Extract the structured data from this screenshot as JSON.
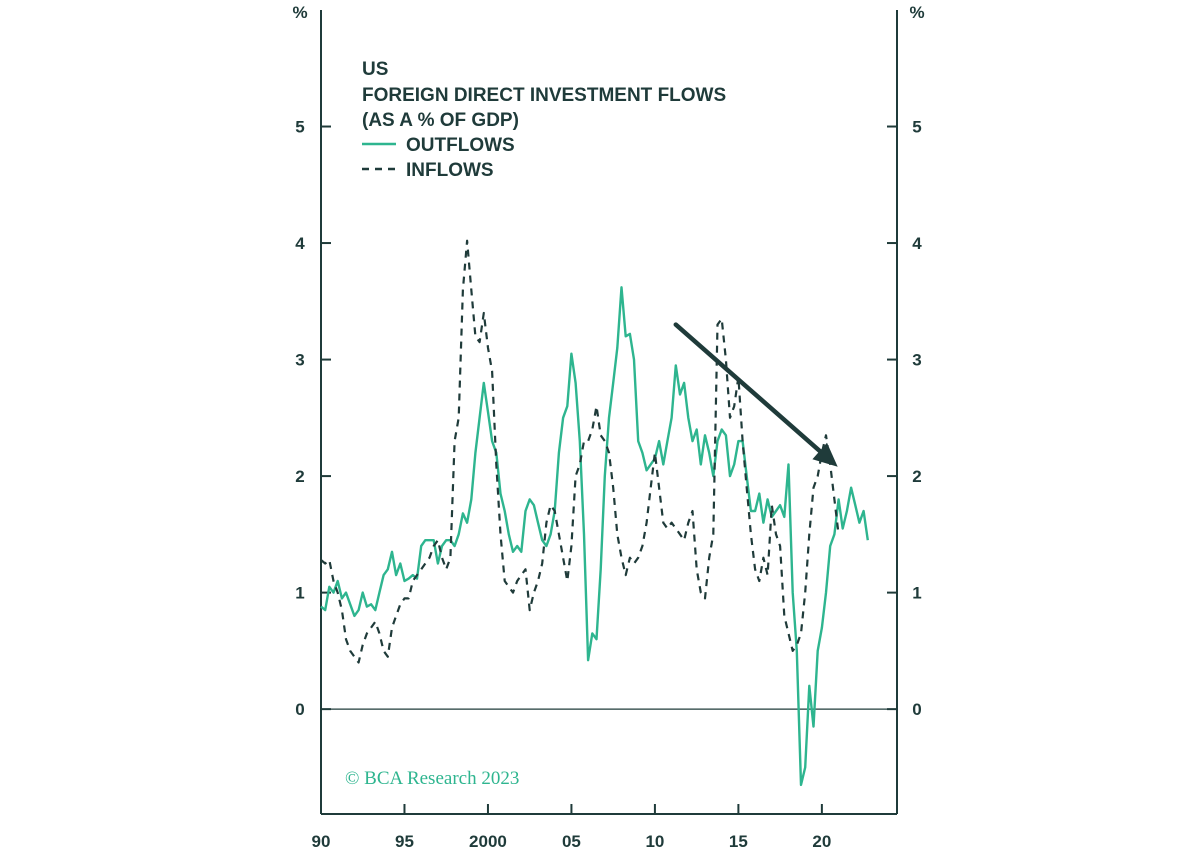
{
  "colors": {
    "outflows": "#2eb58f",
    "inflows": "#1f3b3a",
    "axis": "#1f3b3a",
    "source": "#2eb58f"
  },
  "chart_data": {
    "type": "line",
    "title_lines": [
      "US",
      "FOREIGN DIRECT INVESTMENT FLOWS",
      "(AS A % OF GDP)"
    ],
    "left_unit": "%",
    "right_unit": "%",
    "ylim": [
      -0.9,
      6.0
    ],
    "xlim": [
      1990,
      2024.5
    ],
    "y_ticks": [
      0,
      1,
      2,
      3,
      4,
      5
    ],
    "y_tick_labels": [
      "0",
      "1",
      "2",
      "3",
      "4",
      "5"
    ],
    "x_ticks": [
      1990,
      1995,
      2000,
      2005,
      2010,
      2015,
      2020
    ],
    "x_tick_labels": [
      "90",
      "95",
      "2000",
      "05",
      "10",
      "15",
      "20"
    ],
    "zero_line": 0,
    "annotation": {
      "type": "arrow",
      "from": [
        2011.25,
        3.3
      ],
      "to": [
        2020.95,
        2.08
      ],
      "description": "downward trend arrow"
    },
    "source": "© BCA Research 2023",
    "series": [
      {
        "name": "OUTFLOWS",
        "style": "solid",
        "points": [
          [
            1990.0,
            0.88
          ],
          [
            1990.25,
            0.85
          ],
          [
            1990.5,
            1.05
          ],
          [
            1990.75,
            1.0
          ],
          [
            1991.0,
            1.1
          ],
          [
            1991.25,
            0.95
          ],
          [
            1991.5,
            1.0
          ],
          [
            1991.75,
            0.9
          ],
          [
            1992.0,
            0.8
          ],
          [
            1992.25,
            0.85
          ],
          [
            1992.5,
            1.0
          ],
          [
            1992.75,
            0.88
          ],
          [
            1993.0,
            0.9
          ],
          [
            1993.25,
            0.85
          ],
          [
            1993.5,
            1.0
          ],
          [
            1993.75,
            1.15
          ],
          [
            1994.0,
            1.2
          ],
          [
            1994.25,
            1.35
          ],
          [
            1994.5,
            1.15
          ],
          [
            1994.75,
            1.25
          ],
          [
            1995.0,
            1.1
          ],
          [
            1995.25,
            1.12
          ],
          [
            1995.5,
            1.15
          ],
          [
            1995.75,
            1.12
          ],
          [
            1996.0,
            1.4
          ],
          [
            1996.25,
            1.45
          ],
          [
            1996.5,
            1.45
          ],
          [
            1996.75,
            1.45
          ],
          [
            1997.0,
            1.25
          ],
          [
            1997.25,
            1.4
          ],
          [
            1997.5,
            1.45
          ],
          [
            1997.75,
            1.45
          ],
          [
            1998.0,
            1.4
          ],
          [
            1998.25,
            1.5
          ],
          [
            1998.5,
            1.68
          ],
          [
            1998.75,
            1.6
          ],
          [
            1999.0,
            1.8
          ],
          [
            1999.25,
            2.2
          ],
          [
            1999.5,
            2.5
          ],
          [
            1999.75,
            2.8
          ],
          [
            2000.0,
            2.55
          ],
          [
            2000.25,
            2.3
          ],
          [
            2000.5,
            2.2
          ],
          [
            2000.75,
            1.85
          ],
          [
            2001.0,
            1.7
          ],
          [
            2001.25,
            1.5
          ],
          [
            2001.5,
            1.35
          ],
          [
            2001.75,
            1.4
          ],
          [
            2002.0,
            1.35
          ],
          [
            2002.25,
            1.7
          ],
          [
            2002.5,
            1.8
          ],
          [
            2002.75,
            1.75
          ],
          [
            2003.0,
            1.6
          ],
          [
            2003.25,
            1.45
          ],
          [
            2003.5,
            1.4
          ],
          [
            2003.75,
            1.5
          ],
          [
            2004.0,
            1.7
          ],
          [
            2004.25,
            2.2
          ],
          [
            2004.5,
            2.5
          ],
          [
            2004.75,
            2.6
          ],
          [
            2005.0,
            3.05
          ],
          [
            2005.25,
            2.8
          ],
          [
            2005.5,
            2.3
          ],
          [
            2005.75,
            1.5
          ],
          [
            2006.0,
            0.42
          ],
          [
            2006.25,
            0.65
          ],
          [
            2006.5,
            0.6
          ],
          [
            2006.75,
            1.2
          ],
          [
            2007.0,
            2.0
          ],
          [
            2007.25,
            2.5
          ],
          [
            2007.5,
            2.8
          ],
          [
            2007.75,
            3.1
          ],
          [
            2008.0,
            3.62
          ],
          [
            2008.25,
            3.2
          ],
          [
            2008.5,
            3.22
          ],
          [
            2008.75,
            3.0
          ],
          [
            2009.0,
            2.3
          ],
          [
            2009.25,
            2.2
          ],
          [
            2009.5,
            2.05
          ],
          [
            2009.75,
            2.1
          ],
          [
            2010.0,
            2.15
          ],
          [
            2010.25,
            2.3
          ],
          [
            2010.5,
            2.1
          ],
          [
            2010.75,
            2.3
          ],
          [
            2011.0,
            2.5
          ],
          [
            2011.25,
            2.95
          ],
          [
            2011.5,
            2.7
          ],
          [
            2011.75,
            2.8
          ],
          [
            2012.0,
            2.5
          ],
          [
            2012.25,
            2.3
          ],
          [
            2012.5,
            2.4
          ],
          [
            2012.75,
            2.1
          ],
          [
            2013.0,
            2.35
          ],
          [
            2013.25,
            2.2
          ],
          [
            2013.5,
            2.0
          ],
          [
            2013.75,
            2.3
          ],
          [
            2014.0,
            2.4
          ],
          [
            2014.25,
            2.35
          ],
          [
            2014.5,
            2.0
          ],
          [
            2014.75,
            2.1
          ],
          [
            2015.0,
            2.3
          ],
          [
            2015.25,
            2.3
          ],
          [
            2015.5,
            2.0
          ],
          [
            2015.75,
            1.7
          ],
          [
            2016.0,
            1.7
          ],
          [
            2016.25,
            1.85
          ],
          [
            2016.5,
            1.6
          ],
          [
            2016.75,
            1.8
          ],
          [
            2017.0,
            1.65
          ],
          [
            2017.25,
            1.7
          ],
          [
            2017.5,
            1.75
          ],
          [
            2017.75,
            1.65
          ],
          [
            2018.0,
            2.1
          ],
          [
            2018.25,
            1.0
          ],
          [
            2018.5,
            0.5
          ],
          [
            2018.75,
            -0.65
          ],
          [
            2019.0,
            -0.5
          ],
          [
            2019.25,
            0.2
          ],
          [
            2019.5,
            -0.15
          ],
          [
            2019.75,
            0.5
          ],
          [
            2020.0,
            0.7
          ],
          [
            2020.25,
            1.0
          ],
          [
            2020.5,
            1.4
          ],
          [
            2020.75,
            1.5
          ],
          [
            2021.0,
            1.8
          ],
          [
            2021.25,
            1.55
          ],
          [
            2021.5,
            1.7
          ],
          [
            2021.75,
            1.9
          ],
          [
            2022.0,
            1.75
          ],
          [
            2022.25,
            1.6
          ],
          [
            2022.5,
            1.7
          ],
          [
            2022.75,
            1.45
          ]
        ]
      },
      {
        "name": "INFLOWS",
        "style": "dashed",
        "points": [
          [
            1990.0,
            1.28
          ],
          [
            1990.25,
            1.25
          ],
          [
            1990.5,
            1.28
          ],
          [
            1990.75,
            1.1
          ],
          [
            1991.0,
            1.0
          ],
          [
            1991.25,
            0.85
          ],
          [
            1991.5,
            0.6
          ],
          [
            1991.75,
            0.5
          ],
          [
            1992.0,
            0.45
          ],
          [
            1992.25,
            0.4
          ],
          [
            1992.5,
            0.55
          ],
          [
            1992.75,
            0.65
          ],
          [
            1993.0,
            0.7
          ],
          [
            1993.25,
            0.75
          ],
          [
            1993.5,
            0.65
          ],
          [
            1993.75,
            0.5
          ],
          [
            1994.0,
            0.45
          ],
          [
            1994.25,
            0.7
          ],
          [
            1994.5,
            0.8
          ],
          [
            1994.75,
            0.9
          ],
          [
            1995.0,
            0.95
          ],
          [
            1995.25,
            0.95
          ],
          [
            1995.5,
            1.1
          ],
          [
            1995.75,
            1.15
          ],
          [
            1996.0,
            1.2
          ],
          [
            1996.25,
            1.25
          ],
          [
            1996.5,
            1.3
          ],
          [
            1996.75,
            1.4
          ],
          [
            1997.0,
            1.45
          ],
          [
            1997.25,
            1.3
          ],
          [
            1997.5,
            1.2
          ],
          [
            1997.75,
            1.3
          ],
          [
            1998.0,
            2.3
          ],
          [
            1998.25,
            2.5
          ],
          [
            1998.5,
            3.6
          ],
          [
            1998.75,
            4.02
          ],
          [
            1999.0,
            3.6
          ],
          [
            1999.25,
            3.2
          ],
          [
            1999.5,
            3.15
          ],
          [
            1999.75,
            3.4
          ],
          [
            2000.0,
            3.1
          ],
          [
            2000.25,
            2.9
          ],
          [
            2000.5,
            2.1
          ],
          [
            2000.75,
            1.5
          ],
          [
            2001.0,
            1.1
          ],
          [
            2001.25,
            1.05
          ],
          [
            2001.5,
            1.0
          ],
          [
            2001.75,
            1.1
          ],
          [
            2002.0,
            1.15
          ],
          [
            2002.25,
            1.2
          ],
          [
            2002.5,
            0.85
          ],
          [
            2002.75,
            1.0
          ],
          [
            2003.0,
            1.1
          ],
          [
            2003.25,
            1.25
          ],
          [
            2003.5,
            1.6
          ],
          [
            2003.75,
            1.75
          ],
          [
            2004.0,
            1.7
          ],
          [
            2004.25,
            1.5
          ],
          [
            2004.5,
            1.3
          ],
          [
            2004.75,
            1.1
          ],
          [
            2005.0,
            1.4
          ],
          [
            2005.25,
            2.0
          ],
          [
            2005.5,
            2.1
          ],
          [
            2005.75,
            2.3
          ],
          [
            2006.0,
            2.3
          ],
          [
            2006.25,
            2.4
          ],
          [
            2006.5,
            2.6
          ],
          [
            2006.75,
            2.35
          ],
          [
            2007.0,
            2.3
          ],
          [
            2007.25,
            2.2
          ],
          [
            2007.5,
            1.9
          ],
          [
            2007.75,
            1.5
          ],
          [
            2008.0,
            1.3
          ],
          [
            2008.25,
            1.15
          ],
          [
            2008.5,
            1.3
          ],
          [
            2008.75,
            1.25
          ],
          [
            2009.0,
            1.3
          ],
          [
            2009.25,
            1.4
          ],
          [
            2009.5,
            1.6
          ],
          [
            2009.75,
            1.9
          ],
          [
            2010.0,
            2.2
          ],
          [
            2010.25,
            1.9
          ],
          [
            2010.5,
            1.6
          ],
          [
            2010.75,
            1.55
          ],
          [
            2011.0,
            1.6
          ],
          [
            2011.25,
            1.55
          ],
          [
            2011.5,
            1.5
          ],
          [
            2011.75,
            1.45
          ],
          [
            2012.0,
            1.6
          ],
          [
            2012.25,
            1.7
          ],
          [
            2012.5,
            1.2
          ],
          [
            2012.75,
            1.0
          ],
          [
            2013.0,
            0.95
          ],
          [
            2013.25,
            1.3
          ],
          [
            2013.5,
            1.5
          ],
          [
            2013.75,
            3.3
          ],
          [
            2014.0,
            3.35
          ],
          [
            2014.25,
            3.0
          ],
          [
            2014.5,
            2.5
          ],
          [
            2014.75,
            2.6
          ],
          [
            2015.0,
            2.85
          ],
          [
            2015.25,
            2.3
          ],
          [
            2015.5,
            1.9
          ],
          [
            2015.75,
            1.5
          ],
          [
            2016.0,
            1.2
          ],
          [
            2016.25,
            1.1
          ],
          [
            2016.5,
            1.3
          ],
          [
            2016.75,
            1.15
          ],
          [
            2017.0,
            1.75
          ],
          [
            2017.25,
            1.5
          ],
          [
            2017.5,
            1.4
          ],
          [
            2017.75,
            0.8
          ],
          [
            2018.0,
            0.65
          ],
          [
            2018.25,
            0.5
          ],
          [
            2018.5,
            0.55
          ],
          [
            2018.75,
            0.65
          ],
          [
            2019.0,
            1.0
          ],
          [
            2019.25,
            1.5
          ],
          [
            2019.5,
            1.9
          ],
          [
            2019.75,
            2.0
          ],
          [
            2020.0,
            2.2
          ],
          [
            2020.25,
            2.35
          ],
          [
            2020.5,
            2.1
          ],
          [
            2020.75,
            1.8
          ],
          [
            2021.0,
            1.5
          ]
        ]
      }
    ]
  }
}
